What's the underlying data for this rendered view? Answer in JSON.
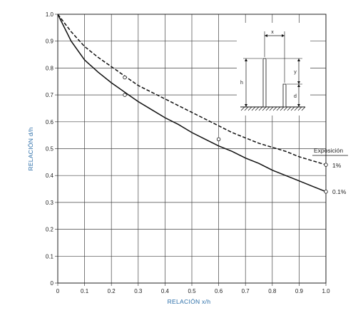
{
  "chart_data": {
    "type": "line",
    "xlabel": "RELACIÓN x/h",
    "ylabel": "RELACIÓN d/h",
    "xlim": [
      0,
      1.0
    ],
    "ylim": [
      0,
      1.0
    ],
    "x_ticks": [
      "0",
      "0.1",
      "0.2",
      "0.3",
      "0.4",
      "0.5",
      "0.6",
      "0.7",
      "0.8",
      "0.9",
      "1.0"
    ],
    "y_ticks": [
      "0",
      "0.1",
      "0.2",
      "0.3",
      "0.4",
      "0.5",
      "0.6",
      "0.7",
      "0.8",
      "0.9",
      "1.0"
    ],
    "grid": true,
    "legend_title": "Exposición",
    "series": [
      {
        "name": "1%",
        "style": "dashed",
        "x": [
          0,
          0.05,
          0.1,
          0.15,
          0.2,
          0.25,
          0.3,
          0.35,
          0.4,
          0.45,
          0.5,
          0.55,
          0.6,
          0.65,
          0.7,
          0.75,
          0.8,
          0.85,
          0.9,
          0.95,
          1.0
        ],
        "y": [
          1.0,
          0.935,
          0.88,
          0.84,
          0.805,
          0.77,
          0.735,
          0.71,
          0.685,
          0.66,
          0.635,
          0.61,
          0.585,
          0.56,
          0.54,
          0.52,
          0.505,
          0.49,
          0.47,
          0.455,
          0.44
        ],
        "markers": [
          {
            "x": 0.25,
            "y": 0.765
          }
        ]
      },
      {
        "name": "0.1%",
        "style": "solid",
        "x": [
          0,
          0.05,
          0.1,
          0.15,
          0.2,
          0.25,
          0.3,
          0.35,
          0.4,
          0.45,
          0.5,
          0.55,
          0.6,
          0.65,
          0.7,
          0.75,
          0.8,
          0.85,
          0.9,
          0.95,
          1.0
        ],
        "y": [
          1.0,
          0.9,
          0.83,
          0.785,
          0.745,
          0.71,
          0.675,
          0.645,
          0.615,
          0.59,
          0.56,
          0.535,
          0.51,
          0.49,
          0.465,
          0.445,
          0.42,
          0.4,
          0.38,
          0.36,
          0.34
        ],
        "markers": [
          {
            "x": 0.25,
            "y": 0.7
          },
          {
            "x": 0.6,
            "y": 0.535
          }
        ]
      }
    ],
    "inset": {
      "labels": [
        "x",
        "y",
        "h",
        "d"
      ]
    }
  },
  "colors": {
    "axis_title": "#2b6ea8",
    "line": "#111111",
    "grid": "#444444"
  }
}
